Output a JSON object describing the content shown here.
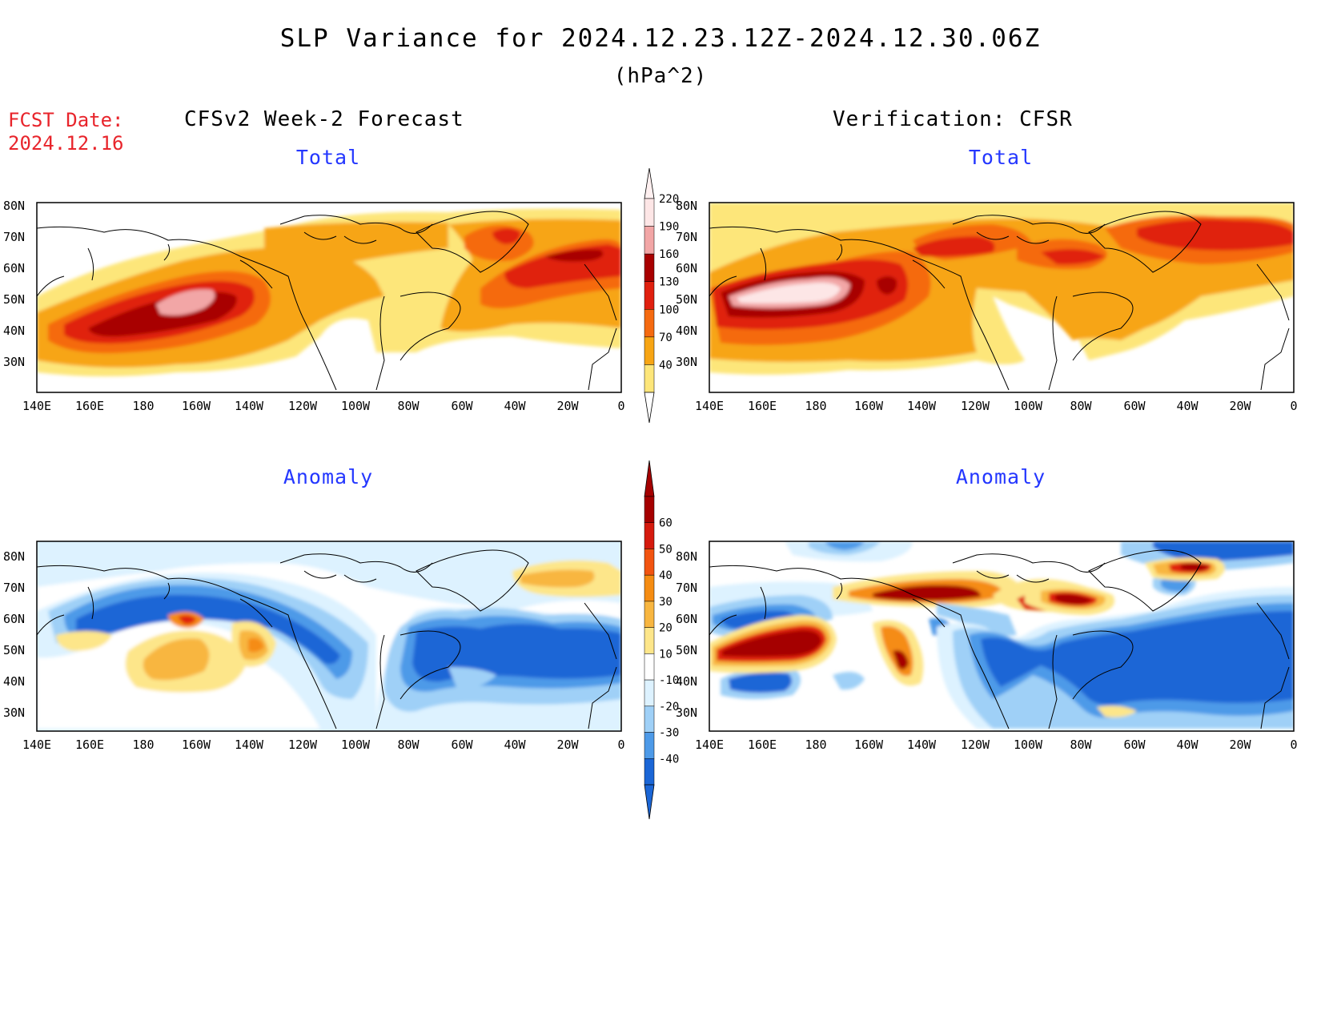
{
  "header": {
    "title": "SLP Variance for 2024.12.23.12Z-2024.12.30.06Z",
    "units": "(hPa^2)",
    "fcst_label": "FCST Date:",
    "fcst_date": "2024.12.16"
  },
  "columns": {
    "left_title": "CFSv2 Week-2 Forecast",
    "right_title": "Verification: CFSR"
  },
  "panels": {
    "total_label": "Total",
    "anomaly_label": "Anomaly"
  },
  "axes": {
    "lat_ticks": [
      "80N",
      "70N",
      "60N",
      "50N",
      "40N",
      "30N"
    ],
    "lon_ticks": [
      "140E",
      "160E",
      "180",
      "160W",
      "140W",
      "120W",
      "100W",
      "80W",
      "60W",
      "40W",
      "20W",
      "0"
    ]
  },
  "colorbars": {
    "total": {
      "levels": [
        "220",
        "190",
        "160",
        "130",
        "100",
        "70",
        "40"
      ],
      "colors": [
        "#fde6e6",
        "#f2a6a6",
        "#a80000",
        "#e0200f",
        "#f56a10",
        "#f7a514",
        "#fde67a"
      ]
    },
    "anomaly": {
      "levels": [
        "60",
        "50",
        "40",
        "30",
        "20",
        "10",
        "-10",
        "-20",
        "-30",
        "-40"
      ],
      "colors": [
        "#a50000",
        "#d51a0e",
        "#f25410",
        "#f58c12",
        "#f8b640",
        "#fde68a",
        "#ffffff",
        "#ddf2ff",
        "#9fd0f7",
        "#4d9ae8",
        "#1b66d6"
      ]
    }
  },
  "colors": {
    "fcst_red": "#e8242b",
    "panel_blue": "#2437ff"
  }
}
